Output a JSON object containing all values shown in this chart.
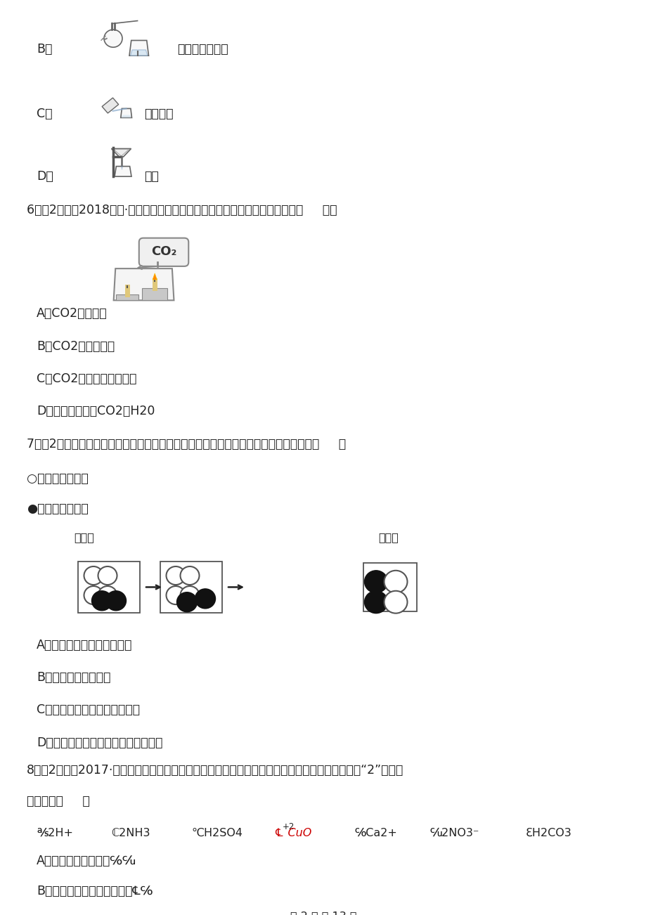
{
  "bg_color": "#ffffff",
  "text_color": "#000000",
  "page_width": 9.2,
  "page_height": 13.02,
  "q6_text": "6．（2分）（2018九上·门头沟月考）根据下图所示实验，不能得到的结论是（     ）。",
  "q7_text": "7．（2分）下图是某个化学反应的微观模拟示意图。从图中获得的有关信息不正确的是（     ）",
  "q8_text": "8．（2分）（2017·陕西模拟）在化学王国里，数字被赋予了丰富的内涵。对下列化学用语中数字‘2’的说法",
  "q8_cont": "正确的是（     ）"
}
